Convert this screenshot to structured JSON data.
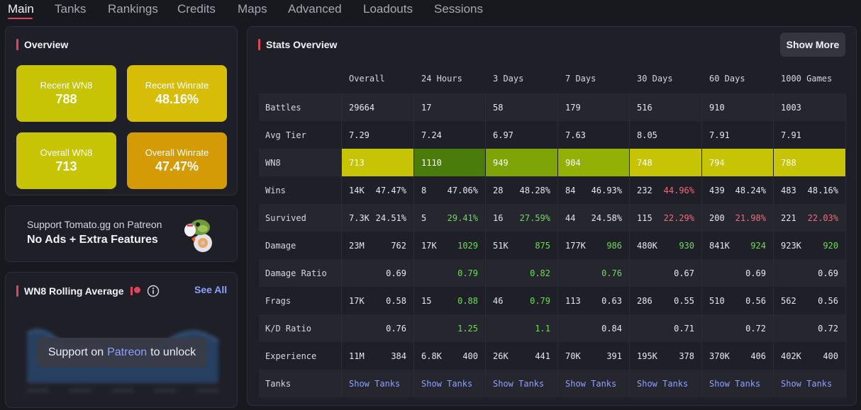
{
  "tabs": [
    "Main",
    "Tanks",
    "Rankings",
    "Credits",
    "Maps",
    "Advanced",
    "Loadouts",
    "Sessions"
  ],
  "overview": {
    "title": "Overview",
    "tiles": [
      {
        "label": "Recent WN8",
        "value": "788",
        "color": "#c7c405"
      },
      {
        "label": "Recent Winrate",
        "value": "48.16%",
        "color": "#d7bd07"
      },
      {
        "label": "Overall WN8",
        "value": "713",
        "color": "#c7c405"
      },
      {
        "label": "Overall Winrate",
        "value": "47.47%",
        "color": "#d49b07"
      }
    ]
  },
  "patreon": {
    "line1": "Support Tomato.gg on Patreon",
    "line2": "No Ads + Extra Features"
  },
  "rolling": {
    "title": "WN8 Rolling Average",
    "see_all": "See All",
    "unlock_prefix": "Support on",
    "unlock_link": "Patreon",
    "unlock_suffix": "to unlock"
  },
  "stats": {
    "title": "Stats Overview",
    "show_more": "Show More",
    "columns": [
      "Overall",
      "24 Hours",
      "3 Days",
      "7 Days",
      "30 Days",
      "60 Days",
      "1000 Games"
    ],
    "rows": [
      {
        "label": "Battles",
        "cells": [
          [
            "29664",
            ""
          ],
          [
            "17",
            ""
          ],
          [
            "58",
            ""
          ],
          [
            "179",
            ""
          ],
          [
            "516",
            ""
          ],
          [
            "910",
            ""
          ],
          [
            "1003",
            ""
          ]
        ]
      },
      {
        "label": "Avg Tier",
        "cells": [
          [
            "7.29",
            ""
          ],
          [
            "7.24",
            ""
          ],
          [
            "6.97",
            ""
          ],
          [
            "7.63",
            ""
          ],
          [
            "8.05",
            ""
          ],
          [
            "7.91",
            ""
          ],
          [
            "7.91",
            ""
          ]
        ]
      },
      {
        "label": "WN8",
        "cells": [
          [
            "713",
            ""
          ],
          [
            "1110",
            ""
          ],
          [
            "949",
            ""
          ],
          [
            "904",
            ""
          ],
          [
            "748",
            ""
          ],
          [
            "794",
            ""
          ],
          [
            "788",
            ""
          ]
        ],
        "colors": [
          "#c7c405",
          "#4a7c0c",
          "#7ea407",
          "#93b004",
          "#c7c405",
          "#c7c405",
          "#c7c405"
        ]
      },
      {
        "label": "Wins",
        "cells": [
          [
            "14K",
            "47.47%"
          ],
          [
            "8",
            "47.06%"
          ],
          [
            "28",
            "48.28%"
          ],
          [
            "84",
            "46.93%"
          ],
          [
            "232",
            "44.96%"
          ],
          [
            "439",
            "48.24%"
          ],
          [
            "483",
            "48.16%"
          ]
        ],
        "tone": [
          "",
          "",
          "",
          "",
          "red",
          "",
          ""
        ]
      },
      {
        "label": "Survived",
        "cells": [
          [
            "7.3K",
            "24.51%"
          ],
          [
            "5",
            "29.41%"
          ],
          [
            "16",
            "27.59%"
          ],
          [
            "44",
            "24.58%"
          ],
          [
            "115",
            "22.29%"
          ],
          [
            "200",
            "21.98%"
          ],
          [
            "221",
            "22.03%"
          ]
        ],
        "tone": [
          "",
          "green",
          "green",
          "",
          "red",
          "red",
          "red"
        ]
      },
      {
        "label": "Damage",
        "cells": [
          [
            "23M",
            "762"
          ],
          [
            "17K",
            "1029"
          ],
          [
            "51K",
            "875"
          ],
          [
            "177K",
            "986"
          ],
          [
            "480K",
            "930"
          ],
          [
            "841K",
            "924"
          ],
          [
            "923K",
            "920"
          ]
        ],
        "tone": [
          "",
          "green",
          "green",
          "green",
          "green",
          "green",
          "green"
        ]
      },
      {
        "label": "Damage Ratio",
        "cells": [
          [
            "",
            "0.69"
          ],
          [
            "",
            "0.79"
          ],
          [
            "",
            "0.82"
          ],
          [
            "",
            "0.76"
          ],
          [
            "",
            "0.67"
          ],
          [
            "",
            "0.69"
          ],
          [
            "",
            "0.69"
          ]
        ],
        "tone": [
          "",
          "green",
          "green",
          "green",
          "",
          "",
          ""
        ]
      },
      {
        "label": "Frags",
        "cells": [
          [
            "17K",
            "0.58"
          ],
          [
            "15",
            "0.88"
          ],
          [
            "46",
            "0.79"
          ],
          [
            "113",
            "0.63"
          ],
          [
            "286",
            "0.55"
          ],
          [
            "510",
            "0.56"
          ],
          [
            "562",
            "0.56"
          ]
        ],
        "tone": [
          "",
          "green",
          "green",
          "",
          "",
          "",
          ""
        ]
      },
      {
        "label": "K/D Ratio",
        "cells": [
          [
            "",
            "0.76"
          ],
          [
            "",
            "1.25"
          ],
          [
            "",
            "1.1"
          ],
          [
            "",
            "0.84"
          ],
          [
            "",
            "0.71"
          ],
          [
            "",
            "0.72"
          ],
          [
            "",
            "0.72"
          ]
        ],
        "tone": [
          "",
          "green",
          "green",
          "",
          "",
          "",
          ""
        ]
      },
      {
        "label": "Experience",
        "cells": [
          [
            "11M",
            "384"
          ],
          [
            "6.8K",
            "400"
          ],
          [
            "26K",
            "441"
          ],
          [
            "70K",
            "391"
          ],
          [
            "195K",
            "378"
          ],
          [
            "370K",
            "406"
          ],
          [
            "402K",
            "400"
          ]
        ],
        "tone": [
          "",
          "",
          "",
          "",
          "",
          "",
          ""
        ]
      },
      {
        "label": "Tanks",
        "cells": [
          [
            "Show Tanks",
            ""
          ],
          [
            "Show Tanks",
            ""
          ],
          [
            "Show Tanks",
            ""
          ],
          [
            "Show Tanks",
            ""
          ],
          [
            "Show Tanks",
            ""
          ],
          [
            "Show Tanks",
            ""
          ],
          [
            "Show Tanks",
            ""
          ]
        ],
        "link": true
      }
    ]
  }
}
